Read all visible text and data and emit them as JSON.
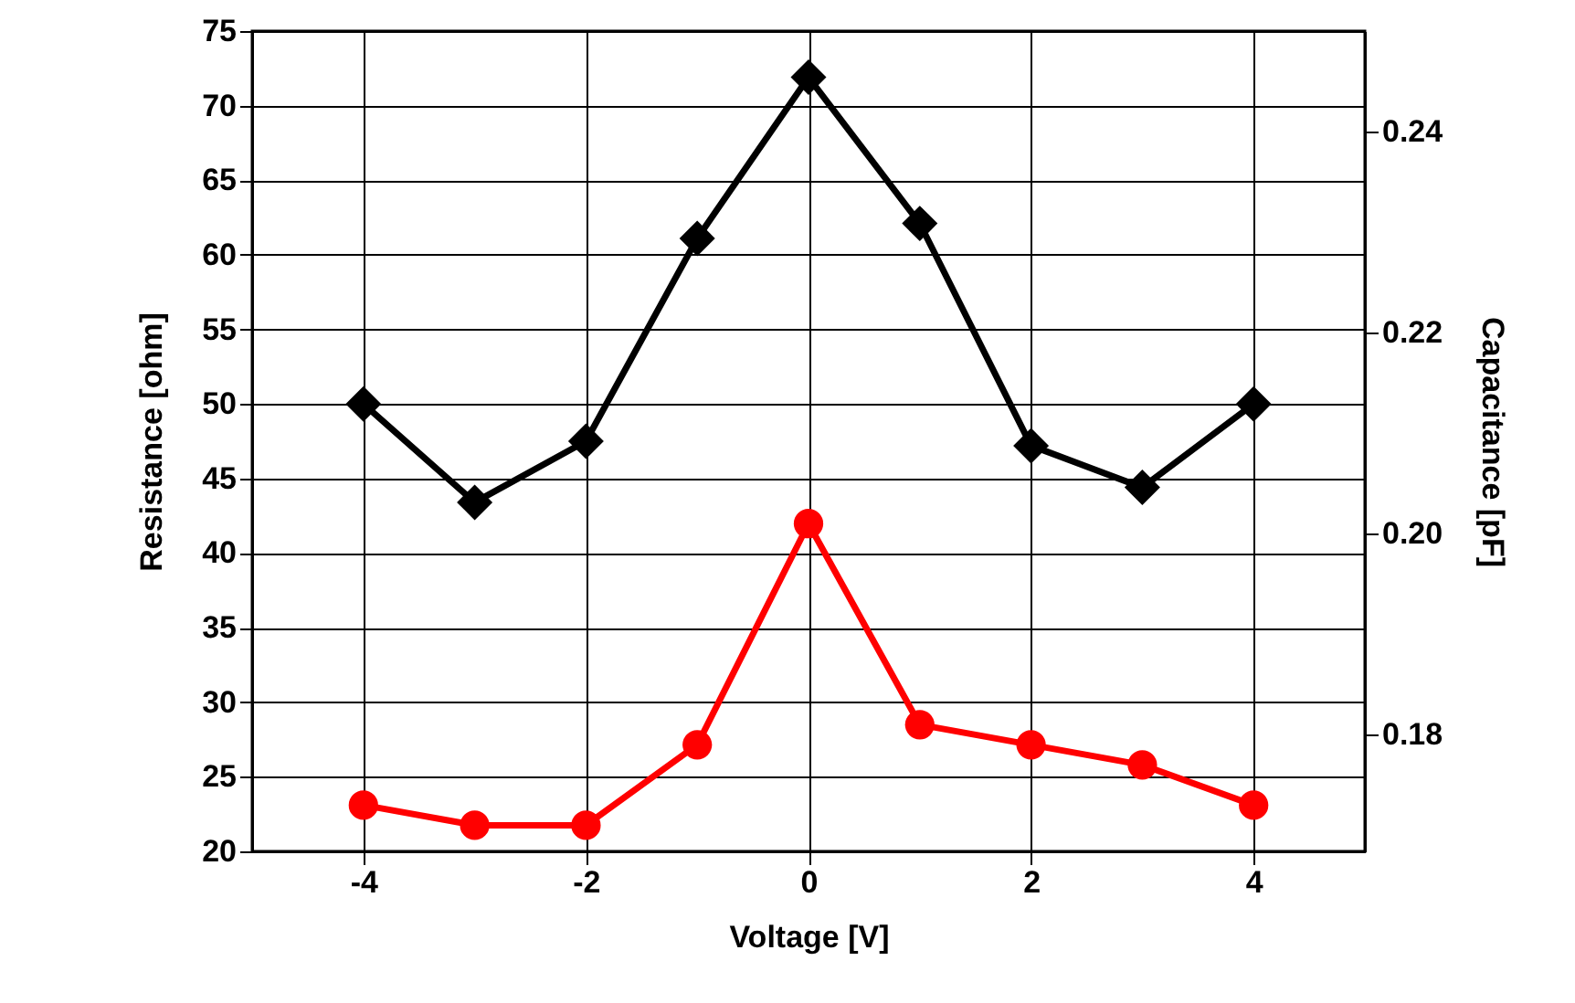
{
  "chart_data": {
    "type": "line",
    "xlabel": "Voltage [V]",
    "ylabel": "Resistance [ohm]",
    "y2label": "Capacitance [pF]",
    "x": [
      -4,
      -3,
      -2,
      -1,
      0,
      1,
      2,
      3,
      4
    ],
    "xlim": [
      -5,
      5
    ],
    "xticks": [
      -4,
      -2,
      0,
      2,
      4
    ],
    "ylim": [
      20,
      75
    ],
    "yticks": [
      20,
      25,
      30,
      35,
      40,
      45,
      50,
      55,
      60,
      65,
      70,
      75
    ],
    "y2lim": [
      0.1684,
      0.25
    ],
    "y2ticks": [
      0.18,
      {
        "value": 0.2,
        "label": "0.20"
      },
      0.22,
      0.24
    ],
    "grid": true,
    "series": [
      {
        "color": "#000000",
        "marker": "diamond",
        "values": [
          50,
          43.4,
          47.5,
          61.1,
          71.9,
          62.1,
          47.2,
          44.4,
          50
        ]
      },
      {
        "color": "#ff0000",
        "marker": "circle",
        "axis": "y2",
        "values": [
          0.173,
          0.171,
          0.171,
          0.179,
          0.201,
          0.181,
          0.179,
          0.177,
          0.173
        ]
      }
    ]
  }
}
